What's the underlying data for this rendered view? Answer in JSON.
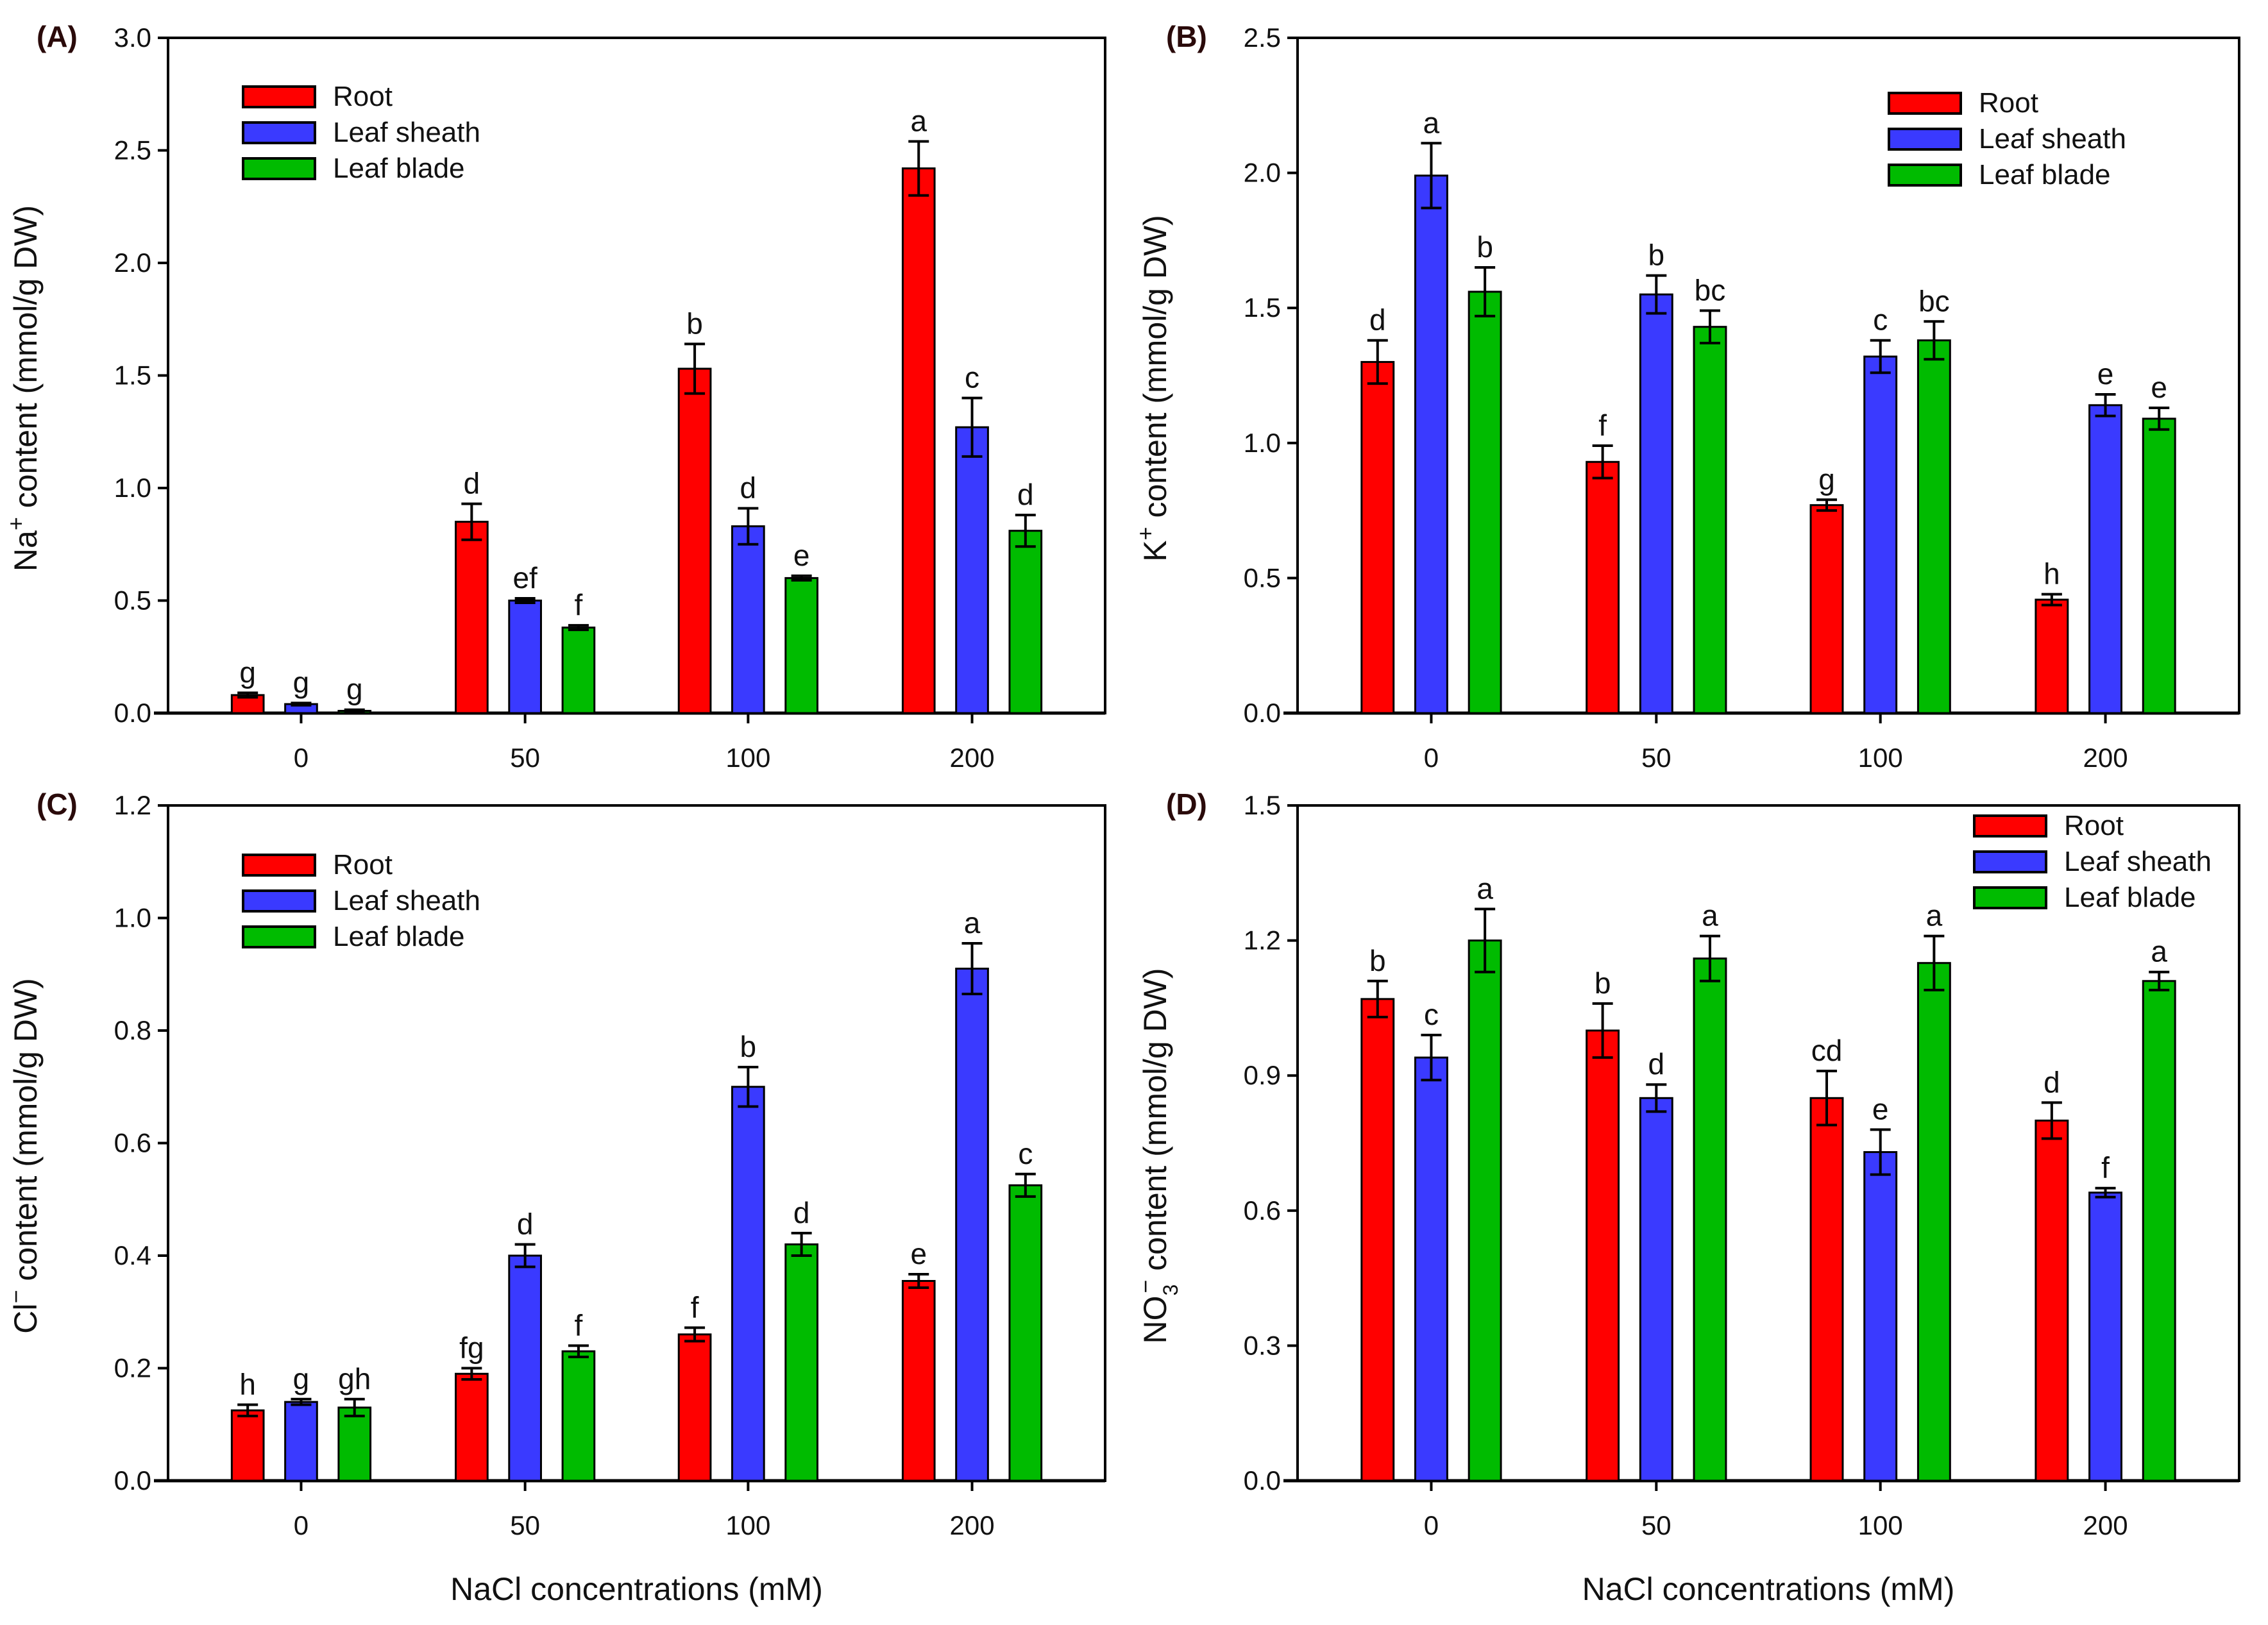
{
  "colors": {
    "Root": "#ff0000",
    "Leaf sheath": "#3a3aff",
    "Leaf blade": "#00bb00"
  },
  "chart_data": [
    {
      "type": "bar",
      "panel": "(A)",
      "categories": [
        "0",
        "50",
        "100",
        "200"
      ],
      "xlabel": "",
      "ylabel": {
        "ion": "Na",
        "sub": "",
        "sup": "+",
        "unit": " content (mmol/g DW)"
      },
      "ylim": [
        0,
        3.0
      ],
      "yticks": [
        "0.0",
        "0.5",
        "1.0",
        "1.5",
        "2.0",
        "2.5",
        "3.0"
      ],
      "legend": "top-left",
      "series": [
        {
          "name": "Root",
          "values": [
            0.08,
            0.85,
            1.53,
            2.42
          ],
          "errors": [
            0.01,
            0.08,
            0.11,
            0.12
          ],
          "letters": [
            "g",
            "d",
            "b",
            "a"
          ]
        },
        {
          "name": "Leaf sheath",
          "values": [
            0.04,
            0.5,
            0.83,
            1.27
          ],
          "errors": [
            0.005,
            0.01,
            0.08,
            0.13
          ],
          "letters": [
            "g",
            "ef",
            "d",
            "c"
          ]
        },
        {
          "name": "Leaf blade",
          "values": [
            0.01,
            0.38,
            0.6,
            0.81
          ],
          "errors": [
            0.005,
            0.01,
            0.01,
            0.07
          ],
          "letters": [
            "g",
            "f",
            "e",
            "d"
          ]
        }
      ]
    },
    {
      "type": "bar",
      "panel": "(B)",
      "categories": [
        "0",
        "50",
        "100",
        "200"
      ],
      "xlabel": "",
      "ylabel": {
        "ion": "K",
        "sub": "",
        "sup": "+",
        "unit": " content (mmol/g DW)"
      },
      "ylim": [
        0,
        2.5
      ],
      "yticks": [
        "0.0",
        "0.5",
        "1.0",
        "1.5",
        "2.0",
        "2.5"
      ],
      "legend": "top-right",
      "series": [
        {
          "name": "Root",
          "values": [
            1.3,
            0.93,
            0.77,
            0.42
          ],
          "errors": [
            0.08,
            0.06,
            0.02,
            0.02
          ],
          "letters": [
            "d",
            "f",
            "g",
            "h"
          ]
        },
        {
          "name": "Leaf sheath",
          "values": [
            1.99,
            1.55,
            1.32,
            1.14
          ],
          "errors": [
            0.12,
            0.07,
            0.06,
            0.04
          ],
          "letters": [
            "a",
            "b",
            "c",
            "e"
          ]
        },
        {
          "name": "Leaf blade",
          "values": [
            1.56,
            1.43,
            1.38,
            1.09
          ],
          "errors": [
            0.09,
            0.06,
            0.07,
            0.04
          ],
          "letters": [
            "b",
            "bc",
            "bc",
            "e"
          ]
        }
      ]
    },
    {
      "type": "bar",
      "panel": "(C)",
      "categories": [
        "0",
        "50",
        "100",
        "200"
      ],
      "xlabel": "NaCl concentrations (mM)",
      "ylabel": {
        "ion": "Cl",
        "sub": "",
        "sup": "−",
        "unit": " content (mmol/g DW)"
      },
      "ylim": [
        0,
        1.2
      ],
      "yticks": [
        "0.0",
        "0.2",
        "0.4",
        "0.6",
        "0.8",
        "1.0",
        "1.2"
      ],
      "legend": "top-left",
      "series": [
        {
          "name": "Root",
          "values": [
            0.125,
            0.19,
            0.26,
            0.355
          ],
          "errors": [
            0.01,
            0.01,
            0.012,
            0.012
          ],
          "letters": [
            "h",
            "fg",
            "f",
            "e"
          ]
        },
        {
          "name": "Leaf sheath",
          "values": [
            0.14,
            0.4,
            0.7,
            0.91
          ],
          "errors": [
            0.005,
            0.02,
            0.035,
            0.045
          ],
          "letters": [
            "g",
            "d",
            "b",
            "a"
          ]
        },
        {
          "name": "Leaf blade",
          "values": [
            0.13,
            0.23,
            0.42,
            0.525
          ],
          "errors": [
            0.015,
            0.01,
            0.02,
            0.02
          ],
          "letters": [
            "gh",
            "f",
            "d",
            "c"
          ]
        }
      ]
    },
    {
      "type": "bar",
      "panel": "(D)",
      "categories": [
        "0",
        "50",
        "100",
        "200"
      ],
      "xlabel": "NaCl concentrations (mM)",
      "ylabel": {
        "ion": "NO",
        "sub": "3",
        "sup": "−",
        "unit": " content (mmol/g DW)"
      },
      "ylim": [
        0,
        1.5
      ],
      "yticks": [
        "0.0",
        "0.3",
        "0.6",
        "0.9",
        "1.2",
        "1.5"
      ],
      "legend": "top-right",
      "series": [
        {
          "name": "Root",
          "values": [
            1.07,
            1.0,
            0.85,
            0.8
          ],
          "errors": [
            0.04,
            0.06,
            0.06,
            0.04
          ],
          "letters": [
            "b",
            "b",
            "cd",
            "d"
          ]
        },
        {
          "name": "Leaf sheath",
          "values": [
            0.94,
            0.85,
            0.73,
            0.64
          ],
          "errors": [
            0.05,
            0.03,
            0.05,
            0.01
          ],
          "letters": [
            "c",
            "d",
            "e",
            "f"
          ]
        },
        {
          "name": "Leaf blade",
          "values": [
            1.2,
            1.16,
            1.15,
            1.11
          ],
          "errors": [
            0.07,
            0.05,
            0.06,
            0.02
          ],
          "letters": [
            "a",
            "a",
            "a",
            "a"
          ]
        }
      ]
    }
  ]
}
